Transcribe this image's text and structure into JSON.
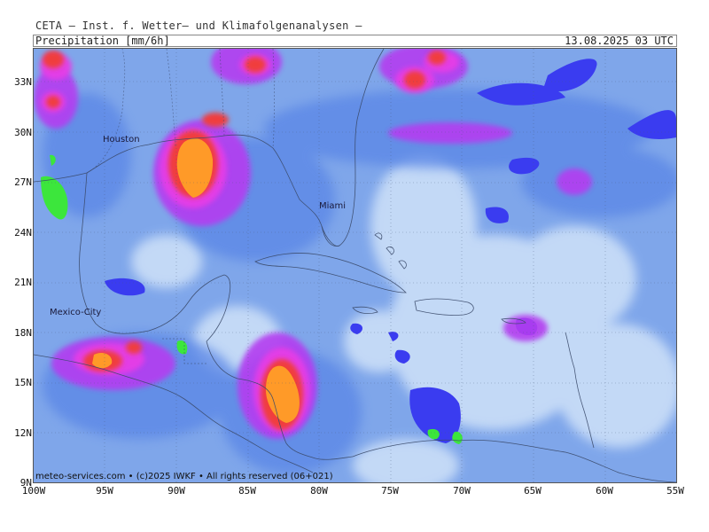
{
  "header": {
    "source": "CETA — Inst. f. Wetter— und Klimafolgenanalysen —",
    "variable": "Precipitation [mm/6h]",
    "valid_time": "13.08.2025 03 UTC"
  },
  "axes": {
    "lat_labels": [
      "33N",
      "30N",
      "27N",
      "24N",
      "21N",
      "18N",
      "15N",
      "12N",
      "9N"
    ],
    "lat_values": [
      33,
      30,
      27,
      24,
      21,
      18,
      15,
      12,
      9
    ],
    "lon_labels": [
      "100W",
      "95W",
      "90W",
      "85W",
      "80W",
      "75W",
      "70W",
      "65W",
      "60W",
      "55W"
    ],
    "lon_values": [
      -100,
      -95,
      -90,
      -85,
      -80,
      -75,
      -70,
      -65,
      -60,
      -55
    ],
    "lat_range": [
      9,
      35
    ],
    "lon_range": [
      -100,
      -55
    ]
  },
  "cities": [
    {
      "name": "Houston",
      "lat": 29.8,
      "lon": -95.4
    },
    {
      "name": "Miami",
      "lat": 25.8,
      "lon": -80.2
    },
    {
      "name": "Mexico-City",
      "lat": 19.4,
      "lon": -99.1
    }
  ],
  "credit": "meteo-services.com • (c)2025 IWKF • All rights reserved (06+021)",
  "colors": {
    "background_precip": "#7fa6ea",
    "light": "#c7dcf7",
    "medium": "#5a86e6",
    "deep_blue": "#3a3cf0",
    "violet": "#b43cf0",
    "magenta": "#e63ce6",
    "red": "#f03c3c",
    "orange": "#ff9a28",
    "green": "#3ce63c"
  },
  "precip_cells": [
    {
      "lon": -88.9,
      "lat": 27.6,
      "level": "orange"
    },
    {
      "lon": -82.5,
      "lat": 15.0,
      "level": "orange"
    },
    {
      "lon": -94.5,
      "lat": 16.3,
      "level": "orange"
    },
    {
      "lon": -86.5,
      "lat": 33.8,
      "level": "red"
    },
    {
      "lon": -72.0,
      "lat": 33.1,
      "level": "red"
    },
    {
      "lon": -99.0,
      "lat": 34.5,
      "level": "red"
    },
    {
      "lon": -99.2,
      "lat": 31.8,
      "level": "red"
    },
    {
      "lon": -87.0,
      "lat": 30.8,
      "level": "red"
    },
    {
      "lon": -92.8,
      "lat": 16.9,
      "level": "red"
    },
    {
      "lon": -70.5,
      "lat": 34.0,
      "level": "red"
    }
  ]
}
